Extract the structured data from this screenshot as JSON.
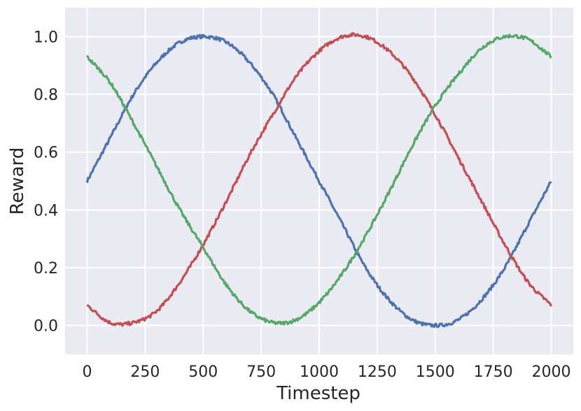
{
  "chart_data": {
    "type": "line",
    "title": "",
    "xlabel": "Timestep",
    "ylabel": "Reward",
    "xlim": [
      -95,
      2095
    ],
    "ylim": [
      -0.1,
      1.1
    ],
    "xticks": [
      0,
      250,
      500,
      750,
      1000,
      1250,
      1500,
      1750,
      2000
    ],
    "xtick_labels": [
      "0",
      "250",
      "500",
      "750",
      "1000",
      "1250",
      "1500",
      "1750",
      "2000"
    ],
    "yticks": [
      0.0,
      0.2,
      0.4,
      0.6,
      0.8,
      1.0
    ],
    "ytick_labels": [
      "0.0",
      "0.2",
      "0.4",
      "0.6",
      "0.8",
      "1.0"
    ],
    "grid": true,
    "legend": "none",
    "x": [
      0,
      100,
      200,
      300,
      400,
      500,
      600,
      700,
      800,
      900,
      1000,
      1100,
      1200,
      1300,
      1400,
      1500,
      1600,
      1700,
      1800,
      1900,
      2000
    ],
    "series": [
      {
        "color": "#4c72b0",
        "values": [
          0.5,
          0.65,
          0.8,
          0.91,
          0.98,
          1.0,
          0.98,
          0.91,
          0.8,
          0.65,
          0.5,
          0.35,
          0.2,
          0.09,
          0.02,
          0.0,
          0.02,
          0.09,
          0.2,
          0.35,
          0.5
        ]
      },
      {
        "color": "#c44e52",
        "values": [
          0.07,
          0.01,
          0.01,
          0.05,
          0.15,
          0.28,
          0.43,
          0.59,
          0.73,
          0.86,
          0.95,
          1.0,
          1.0,
          0.95,
          0.86,
          0.73,
          0.58,
          0.43,
          0.28,
          0.15,
          0.07
        ]
      },
      {
        "color": "#55a868",
        "values": [
          0.93,
          0.84,
          0.7,
          0.55,
          0.4,
          0.27,
          0.14,
          0.05,
          0.01,
          0.02,
          0.08,
          0.18,
          0.31,
          0.46,
          0.62,
          0.76,
          0.87,
          0.96,
          1.0,
          0.99,
          0.93
        ]
      }
    ]
  }
}
